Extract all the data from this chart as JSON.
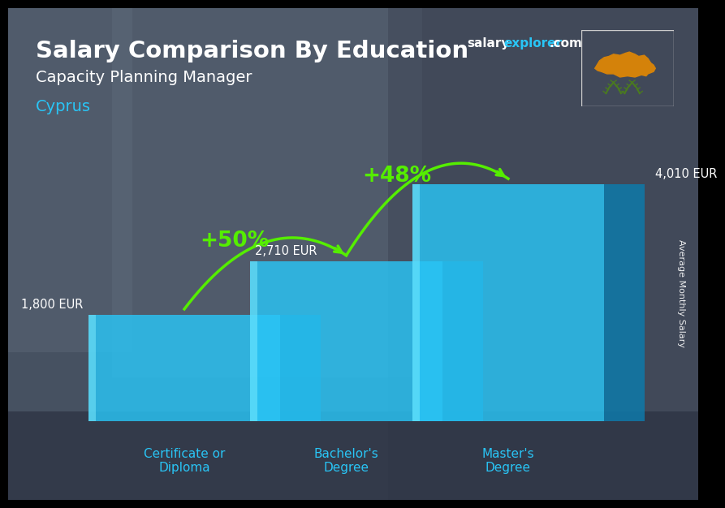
{
  "title_line1": "Salary Comparison By Education",
  "subtitle": "Capacity Planning Manager",
  "country": "Cyprus",
  "categories": [
    "Certificate or\nDiploma",
    "Bachelor's\nDegree",
    "Master's\nDegree"
  ],
  "values": [
    1800,
    2710,
    4010
  ],
  "value_labels": [
    "1,800 EUR",
    "2,710 EUR",
    "4,010 EUR"
  ],
  "bar_front_color": "#29c5f6",
  "bar_side_color": "#1a9ec8",
  "bar_top_color": "#5dd8ff",
  "bar_dark_color": "#0e7aaa",
  "pct_labels": [
    "+50%",
    "+48%"
  ],
  "pct_color": "#55ee00",
  "arrow_color": "#55ee00",
  "ylabel": "Average Monthly Salary",
  "bg_top_color": "#7a8a9a",
  "bg_bottom_color": "#4a5a6a",
  "bar_width": 0.38,
  "bar_depth": 0.08,
  "x_positions": [
    0.18,
    0.5,
    0.82
  ],
  "ylim": [
    0,
    5000
  ],
  "cat_label_color": "#29c5f6",
  "value_label_color": "#ffffff",
  "title_color": "#ffffff",
  "subtitle_color": "#ffffff",
  "country_color": "#29c5f6",
  "website_salary_color": "#ffffff",
  "website_explorer_color": "#29c5f6",
  "website_com_color": "#ffffff"
}
